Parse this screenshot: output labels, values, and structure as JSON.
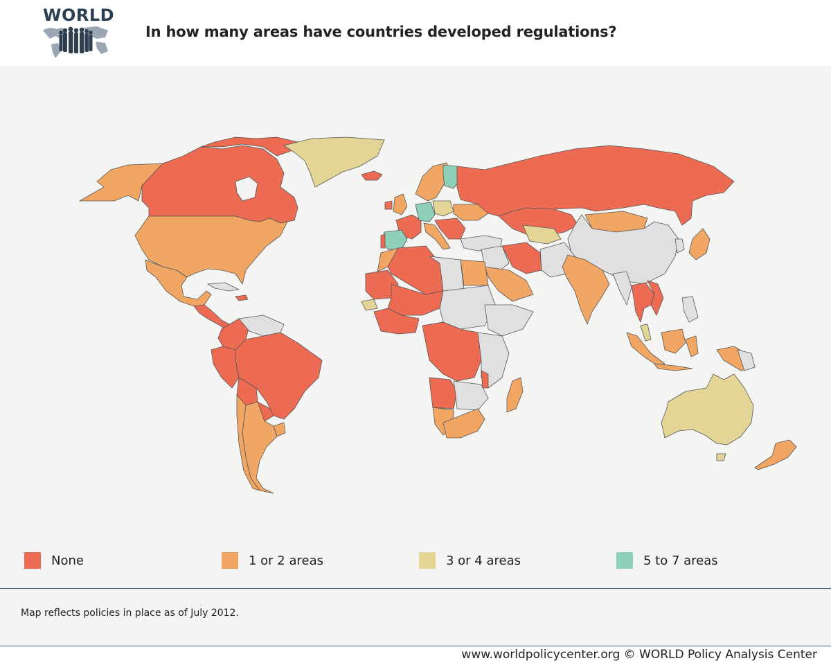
{
  "header": {
    "logo_text": "WORLD",
    "title": "In how many areas have countries developed regulations?"
  },
  "legend": {
    "items": [
      {
        "label": "None",
        "color": "#ed6b52"
      },
      {
        "label": "1 or 2 areas",
        "color": "#f2a664"
      },
      {
        "label": "3 or 4 areas",
        "color": "#e2d596"
      },
      {
        "label": "5 to 7 areas",
        "color": "#8fd0b8"
      }
    ]
  },
  "map": {
    "type": "choropleth world map",
    "no_data_color": "#e0e0e0",
    "background_color": "#f4f4f3",
    "categories": {
      "5 to 7 areas": [
        "Spain",
        "Germany",
        "Finland"
      ],
      "3 or 4 areas": [
        "Greenland",
        "Poland",
        "Kazakhstan (part)",
        "Senegal",
        "Australia",
        "Malaysia (part)"
      ],
      "1 or 2 areas": [
        "Alaska",
        "United States",
        "Mexico",
        "Argentina",
        "Chile",
        "Uruguay",
        "Egypt",
        "Saudi Arabia",
        "India",
        "Mongolia",
        "Japan",
        "Indonesia",
        "New Zealand",
        "Madagascar",
        "South Africa",
        "Namibia",
        "Sweden",
        "Norway",
        "United Kingdom",
        "Italy",
        "Morocco",
        "Papua New Guinea"
      ],
      "None": [
        "Canada",
        "Brazil",
        "Colombia",
        "Venezuela",
        "Peru",
        "Bolivia",
        "Paraguay",
        "Russia",
        "Algeria",
        "Mali",
        "Niger",
        "Angola",
        "DR Congo",
        "Iran",
        "Thailand",
        "Vietnam",
        "Iceland",
        "France",
        "Turkey",
        "Ukraine",
        "Cuba",
        "Central America",
        "West Africa"
      ]
    }
  },
  "footer": {
    "note": "Map reflects policies in place as of July 2012.",
    "credit": "www.worldpolicycenter.org © WORLD Policy Analysis Center"
  }
}
